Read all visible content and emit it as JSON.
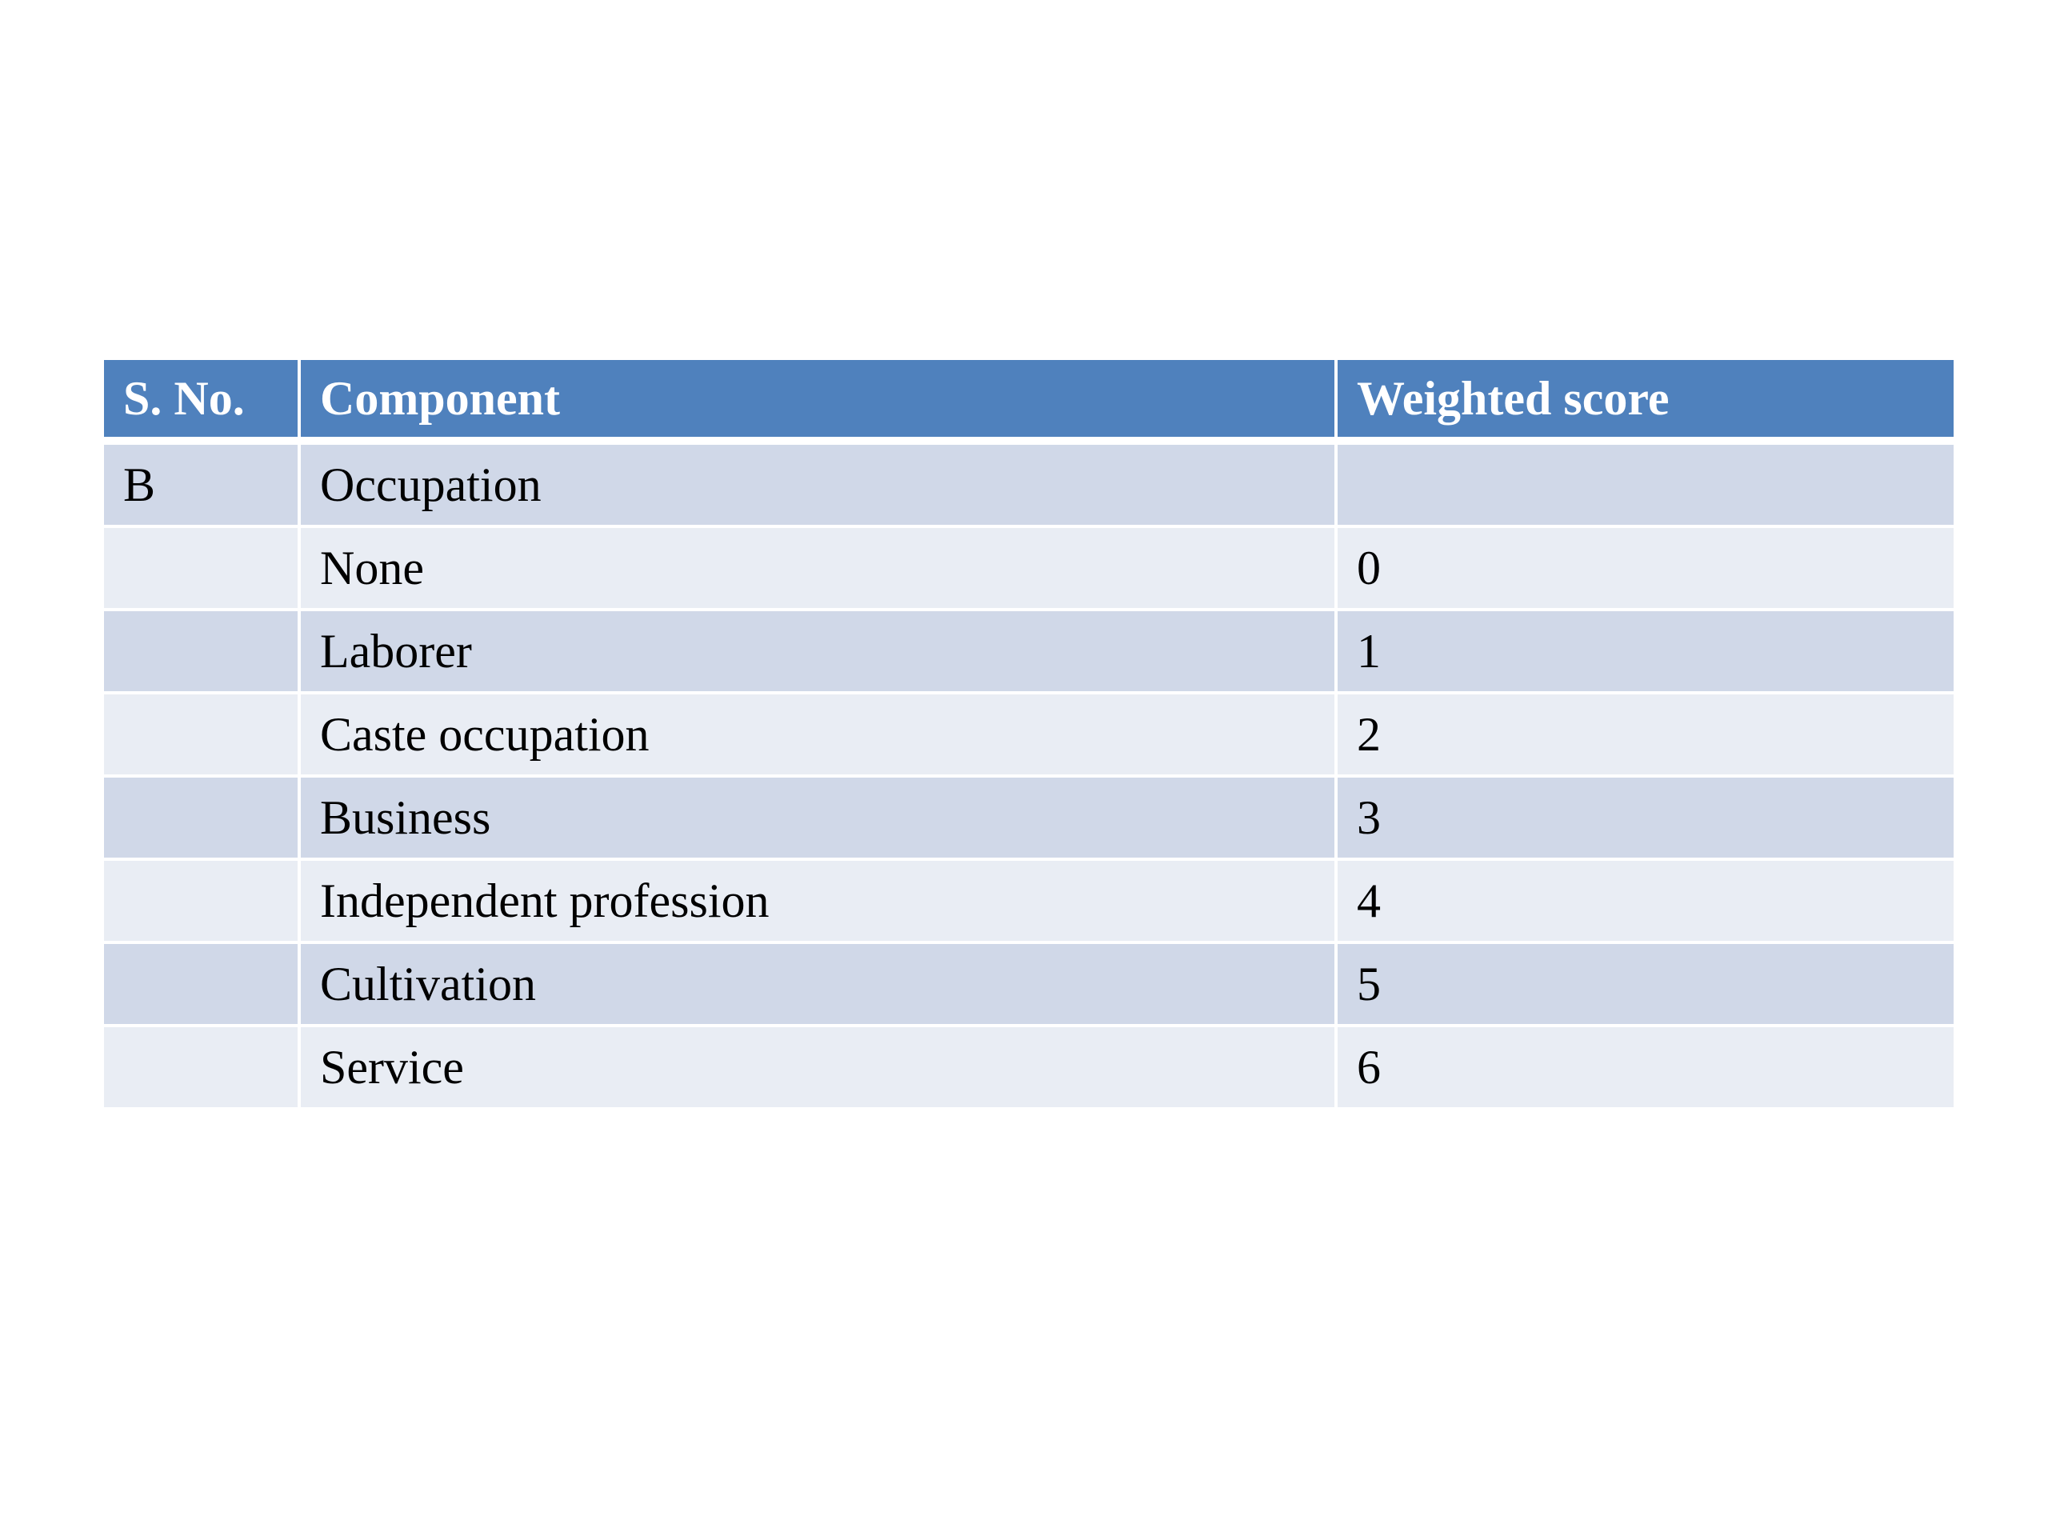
{
  "table": {
    "headers": [
      "S. No.",
      "Component",
      "Weighted score"
    ],
    "rows": [
      [
        "B",
        "Occupation",
        ""
      ],
      [
        "",
        "None",
        "0"
      ],
      [
        "",
        "Laborer",
        "1"
      ],
      [
        "",
        "Caste occupation",
        "2"
      ],
      [
        "",
        "Business",
        "3"
      ],
      [
        "",
        "Independent profession",
        "4"
      ],
      [
        "",
        "Cultivation",
        "5"
      ],
      [
        "",
        "Service",
        "6"
      ]
    ],
    "colors": {
      "header_bg": "#4f81bd",
      "row_dark": "#d0d8e8",
      "row_light": "#e9edf4"
    }
  }
}
